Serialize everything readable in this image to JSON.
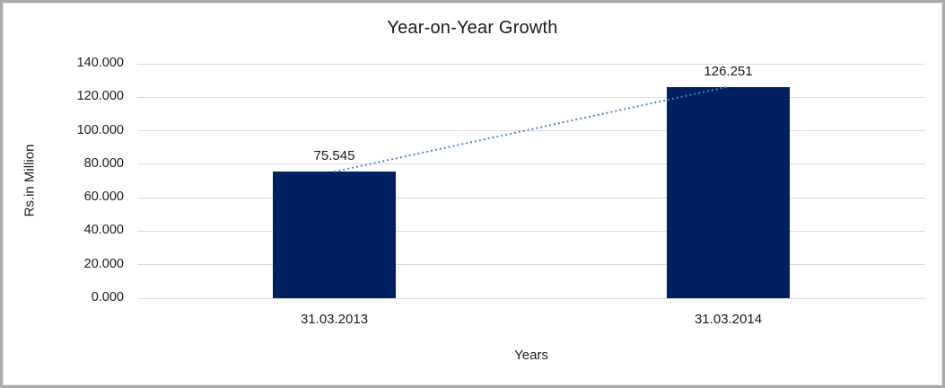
{
  "window": {
    "background": "#ffffff",
    "frame_color": "#a9a9a9"
  },
  "chart_data": {
    "type": "bar",
    "title": "Year-on-Year Growth",
    "xlabel": "Years",
    "ylabel": "Rs.in Million",
    "categories": [
      "31.03.2013",
      "31.03.2014"
    ],
    "values": [
      75.545,
      126.251
    ],
    "value_labels": [
      "75.545",
      "126.251"
    ],
    "ylim": [
      0,
      140
    ],
    "yticks": [
      {
        "value": 0,
        "label": "0.000"
      },
      {
        "value": 20,
        "label": "20.000"
      },
      {
        "value": 40,
        "label": "40.000"
      },
      {
        "value": 60,
        "label": "60.000"
      },
      {
        "value": 80,
        "label": "80.000"
      },
      {
        "value": 100,
        "label": "100.000"
      },
      {
        "value": 120,
        "label": "120.000"
      },
      {
        "value": 140,
        "label": "140.000"
      }
    ],
    "grid": true,
    "legend": false,
    "trendline": {
      "type": "linear",
      "style": "dotted"
    },
    "colors": {
      "bar": "#002060",
      "gridline": "#d9d9d9",
      "trendline": "#4f81bd",
      "text": "#1a1a1a"
    }
  }
}
